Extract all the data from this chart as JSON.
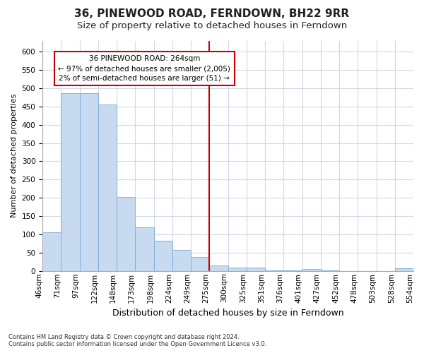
{
  "title": "36, PINEWOOD ROAD, FERNDOWN, BH22 9RR",
  "subtitle": "Size of property relative to detached houses in Ferndown",
  "xlabel": "Distribution of detached houses by size in Ferndown",
  "ylabel": "Number of detached properties",
  "bin_labels": [
    "46sqm",
    "71sqm",
    "97sqm",
    "122sqm",
    "148sqm",
    "173sqm",
    "198sqm",
    "224sqm",
    "249sqm",
    "275sqm",
    "300sqm",
    "325sqm",
    "351sqm",
    "376sqm",
    "401sqm",
    "427sqm",
    "452sqm",
    "478sqm",
    "503sqm",
    "528sqm",
    "554sqm"
  ],
  "bar_values": [
    105,
    487,
    487,
    455,
    202,
    120,
    82,
    57,
    38,
    15,
    10,
    10,
    2,
    1,
    5,
    1,
    0,
    0,
    0,
    7
  ],
  "bar_color": "#c8daf0",
  "bar_edge_color": "#7aabd4",
  "vline_color": "#cc0000",
  "annotation_line1": "36 PINEWOOD ROAD: 264sqm",
  "annotation_line2": "← 97% of detached houses are smaller (2,005)",
  "annotation_line3": "2% of semi-detached houses are larger (51) →",
  "annotation_box_facecolor": "#ffffff",
  "annotation_box_edgecolor": "#cc0000",
  "footer_text": "Contains HM Land Registry data © Crown copyright and database right 2024.\nContains public sector information licensed under the Open Government Licence v3.0.",
  "ylim": [
    0,
    630
  ],
  "yticks": [
    0,
    50,
    100,
    150,
    200,
    250,
    300,
    350,
    400,
    450,
    500,
    550,
    600
  ],
  "background_color": "#ffffff",
  "plot_bg_color": "#ffffff",
  "grid_color": "#d0d8e8",
  "title_fontsize": 11,
  "subtitle_fontsize": 9.5,
  "tick_fontsize": 7.5,
  "ylabel_fontsize": 8,
  "xlabel_fontsize": 9
}
